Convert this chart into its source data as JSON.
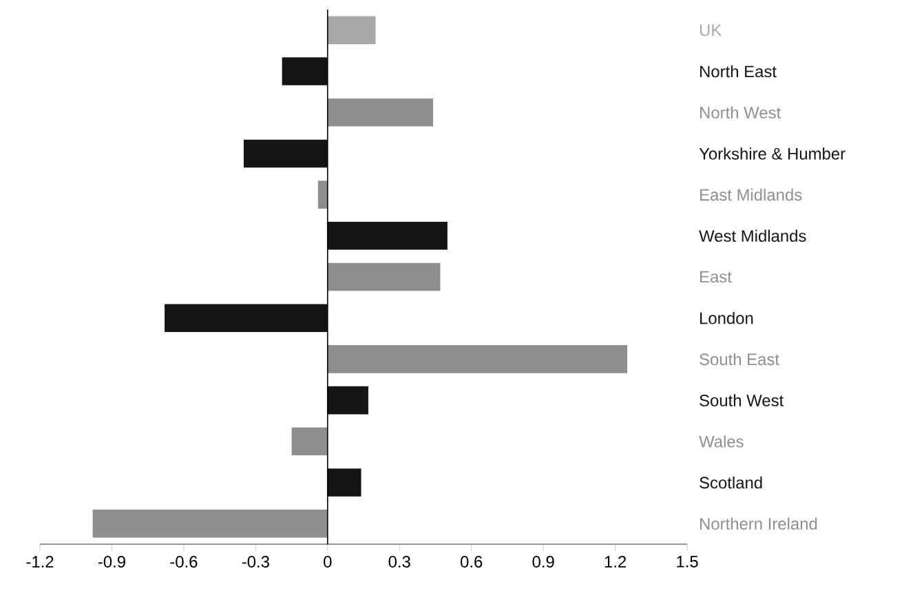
{
  "chart_data": {
    "type": "bar",
    "orientation": "horizontal",
    "categories": [
      "UK",
      "North East",
      "North West",
      "Yorkshire & Humber",
      "East Midlands",
      "West Midlands",
      "East",
      "London",
      "South East",
      "South West",
      "Wales",
      "Scotland",
      "Northern Ireland"
    ],
    "values": [
      0.2,
      -0.19,
      0.44,
      -0.35,
      -0.04,
      0.5,
      0.47,
      -0.68,
      1.25,
      0.17,
      -0.15,
      0.14,
      -0.98
    ],
    "colors": [
      "#a8a8a8",
      "#151515",
      "#8e8e8e",
      "#151515",
      "#8e8e8e",
      "#151515",
      "#8e8e8e",
      "#151515",
      "#8e8e8e",
      "#151515",
      "#8e8e8e",
      "#151515",
      "#8e8e8e"
    ],
    "xlim": [
      -1.2,
      1.5
    ],
    "xticks": [
      -1.2,
      -0.9,
      -0.6,
      -0.3,
      0,
      0.3,
      0.6,
      0.9,
      1.2,
      1.5
    ]
  }
}
